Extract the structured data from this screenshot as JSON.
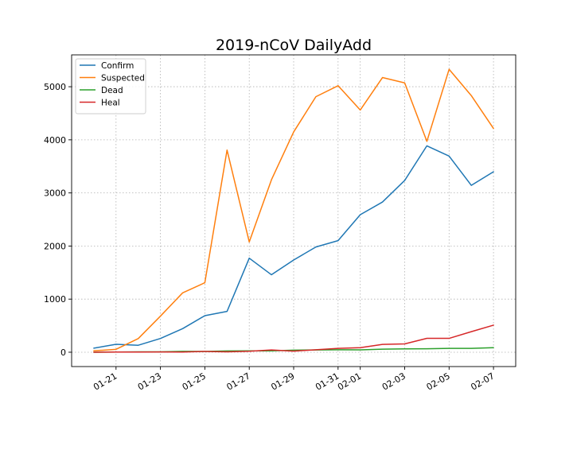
{
  "chart_data": {
    "type": "line",
    "title": "2019-nCoV DailyAdd",
    "xlabel": "",
    "ylabel": "",
    "x": [
      "01-20",
      "01-21",
      "01-22",
      "01-23",
      "01-24",
      "01-25",
      "01-26",
      "01-27",
      "01-28",
      "01-29",
      "01-30",
      "01-31",
      "02-01",
      "02-02",
      "02-03",
      "02-04",
      "02-05",
      "02-06",
      "02-07"
    ],
    "xticks": [
      "01-21",
      "01-23",
      "01-25",
      "01-27",
      "01-29",
      "01-31",
      "02-01",
      "02-03",
      "02-05",
      "02-07"
    ],
    "yticks": [
      0,
      1000,
      2000,
      3000,
      4000,
      5000
    ],
    "ylim": [
      -270,
      5600
    ],
    "grid": true,
    "legend_position": "upper-left",
    "series": [
      {
        "name": "Confirm",
        "color": "#1f77b4",
        "values": [
          77,
          149,
          131,
          259,
          444,
          688,
          769,
          1771,
          1459,
          1737,
          1982,
          2102,
          2590,
          2829,
          3235,
          3887,
          3694,
          3143,
          3399
        ]
      },
      {
        "name": "Suspected",
        "color": "#ff7f0e",
        "values": [
          27,
          54,
          257,
          680,
          1118,
          1309,
          3806,
          2077,
          3248,
          4148,
          4812,
          5019,
          4562,
          5173,
          5072,
          3971,
          5328,
          4833,
          4214
        ]
      },
      {
        "name": "Dead",
        "color": "#2ca02c",
        "values": [
          0,
          3,
          8,
          8,
          16,
          15,
          24,
          26,
          26,
          38,
          43,
          46,
          45,
          57,
          64,
          65,
          73,
          73,
          86
        ]
      },
      {
        "name": "Heal",
        "color": "#d62728",
        "values": [
          0,
          3,
          4,
          6,
          4,
          15,
          8,
          18,
          43,
          21,
          47,
          72,
          85,
          147,
          157,
          262,
          261,
          387,
          510
        ]
      }
    ]
  }
}
